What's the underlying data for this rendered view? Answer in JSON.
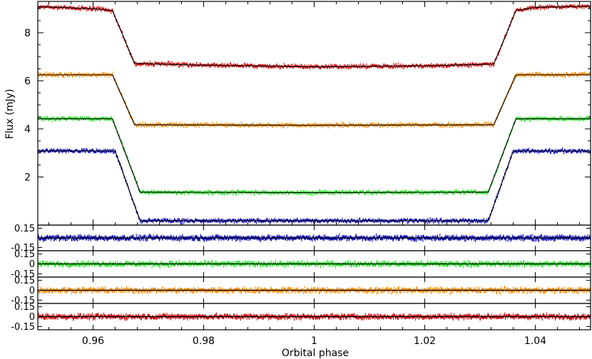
{
  "chart_data": {
    "type": "line",
    "xlabel": "Orbital phase",
    "xlim": [
      0.95,
      1.05
    ],
    "x_ticks": [
      "0.96",
      "0.98",
      "1",
      "1.02",
      "1.04"
    ],
    "x_tick_values": [
      0.96,
      0.98,
      1.0,
      1.02,
      1.04
    ],
    "main_panel": {
      "ylabel": "Flux (mJy)",
      "ylim": [
        0.0,
        9.3
      ],
      "y_ticks": [
        "2",
        "4",
        "6",
        "8"
      ],
      "y_tick_values": [
        2,
        4,
        6,
        8
      ],
      "series": [
        {
          "color": "#cc0000",
          "out_of_eclipse": 9.05,
          "in_eclipse": 6.6,
          "ingress_start": 0.9635,
          "ingress_end": 0.9675,
          "egress_start": 1.0325,
          "egress_end": 1.0365,
          "points": [
            [
              0.95,
              9.08
            ],
            [
              0.96,
              9.0
            ],
            [
              0.9635,
              8.92
            ],
            [
              0.9675,
              6.72
            ],
            [
              0.98,
              6.65
            ],
            [
              1.0,
              6.58
            ],
            [
              1.02,
              6.62
            ],
            [
              1.0325,
              6.7
            ],
            [
              1.0365,
              8.92
            ],
            [
              1.04,
              9.05
            ],
            [
              1.05,
              9.1
            ]
          ]
        },
        {
          "color": "#ff8800",
          "out_of_eclipse": 6.25,
          "in_eclipse": 4.15,
          "ingress_start": 0.9635,
          "ingress_end": 0.9675,
          "egress_start": 1.0325,
          "egress_end": 1.0365,
          "points": [
            [
              0.95,
              6.25
            ],
            [
              0.9635,
              6.25
            ],
            [
              0.9675,
              4.17
            ],
            [
              1.0,
              4.15
            ],
            [
              1.0325,
              4.17
            ],
            [
              1.0365,
              6.25
            ],
            [
              1.05,
              6.25
            ]
          ]
        },
        {
          "color": "#22dd22",
          "out_of_eclipse": 4.42,
          "in_eclipse": 1.35,
          "ingress_start": 0.9635,
          "ingress_end": 0.9685,
          "egress_start": 1.0315,
          "egress_end": 1.0365,
          "points": [
            [
              0.95,
              4.42
            ],
            [
              0.9635,
              4.42
            ],
            [
              0.9685,
              1.37
            ],
            [
              1.0,
              1.35
            ],
            [
              1.0315,
              1.37
            ],
            [
              1.0365,
              4.42
            ],
            [
              1.05,
              4.42
            ]
          ]
        },
        {
          "color": "#0000bb",
          "out_of_eclipse": 3.08,
          "in_eclipse": 0.18,
          "ingress_start": 0.964,
          "ingress_end": 0.9685,
          "egress_start": 1.0315,
          "egress_end": 1.036,
          "points": [
            [
              0.95,
              3.08
            ],
            [
              0.964,
              3.08
            ],
            [
              0.9685,
              0.18
            ],
            [
              1.0,
              0.18
            ],
            [
              1.0315,
              0.18
            ],
            [
              1.036,
              3.08
            ],
            [
              1.05,
              3.08
            ]
          ]
        }
      ]
    },
    "residual_panels": [
      {
        "color": "#0000bb",
        "y_ticks": [
          "0.15",
          "-0.15"
        ],
        "ylim": [
          -0.2,
          0.2
        ],
        "zero_line": 0
      },
      {
        "color": "#22dd22",
        "y_ticks": [
          "0.15",
          "0",
          "-0.15"
        ],
        "ylim": [
          -0.2,
          0.2
        ],
        "zero_line": 0
      },
      {
        "color": "#ff8800",
        "y_ticks": [
          "0.15",
          "0",
          "-0.15"
        ],
        "ylim": [
          -0.2,
          0.2
        ],
        "zero_line": 0
      },
      {
        "color": "#cc0000",
        "y_ticks": [
          "0.15",
          "0",
          "-0.15"
        ],
        "ylim": [
          -0.2,
          0.2
        ],
        "zero_line": 0
      }
    ],
    "model_color": "#000000"
  }
}
